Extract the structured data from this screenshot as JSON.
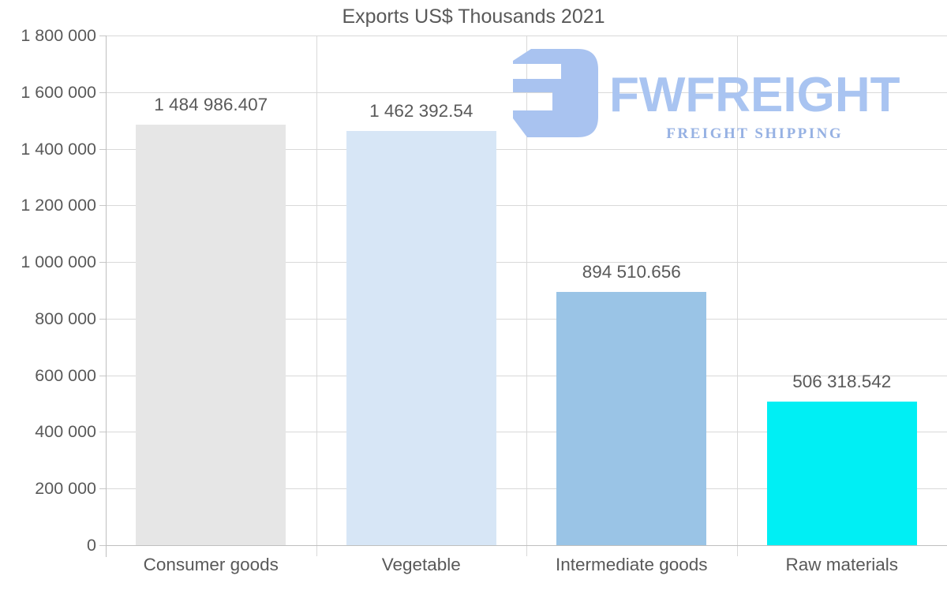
{
  "chart_data": {
    "type": "bar",
    "title": "Exports US$ Thousands 2021",
    "categories": [
      "Consumer goods",
      "Vegetable",
      "Intermediate goods",
      "Raw materials"
    ],
    "values": [
      1484986.407,
      1462392.54,
      894510.656,
      506318.542
    ],
    "value_labels": [
      "1 484 986.407",
      "1 462 392.54",
      "894 510.656",
      "506 318.542"
    ],
    "bar_colors": [
      "#e6e6e6",
      "#d7e6f6",
      "#9ac4e6",
      "#00eff4"
    ],
    "xlabel": "",
    "ylabel": "",
    "ylim": [
      0,
      1800000
    ],
    "ytick_step": 200000,
    "ytick_labels_top_down": [
      "1 800 000",
      "1 600 000",
      "1 400 000",
      "1 200 000",
      "1 000 000",
      "800 000",
      "600 000",
      "400 000",
      "200 000",
      "0"
    ],
    "grid": "horizontal and vertical category boundaries",
    "legend_position": "none"
  },
  "watermark": {
    "brand": "FWFREIGHT",
    "tagline": "FREIGHT SHIPPING",
    "logo_icon": "fwfreight-monogram",
    "icon_color": "#a9c3f0",
    "brand_color": "#a9c4f1",
    "tagline_color": "#96b1e3"
  },
  "styles": {
    "background": "#ffffff",
    "text_color": "#595959",
    "gridline_color": "#d9d9d9",
    "axis_color": "#bfbfbf"
  }
}
